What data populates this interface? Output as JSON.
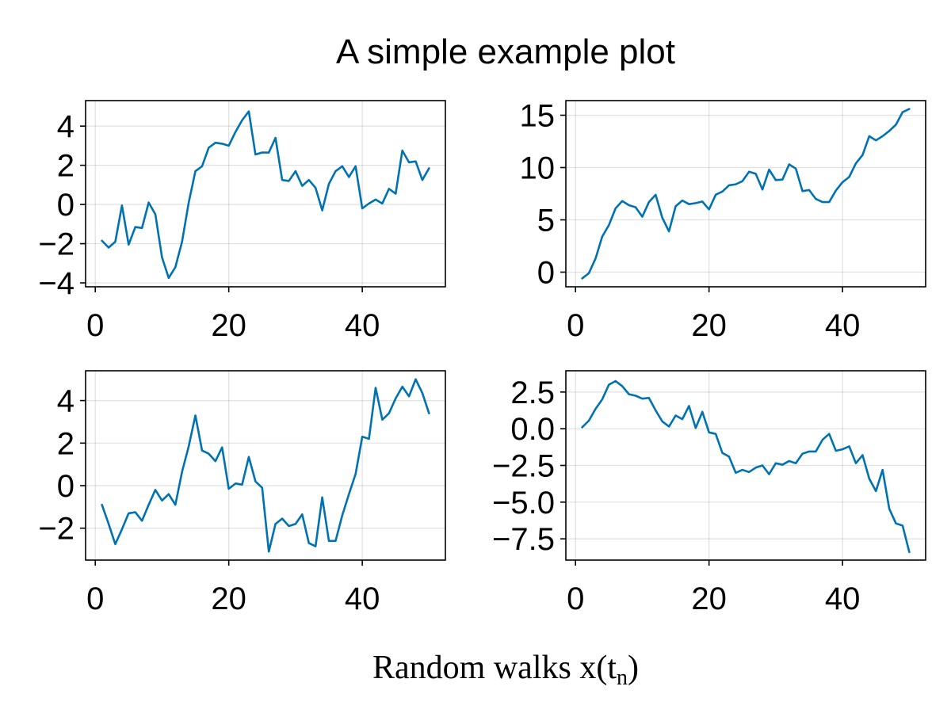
{
  "figure": {
    "title": "A simple example plot",
    "xlabel": "Random walks x(t",
    "xlabel_sub": "n",
    "xlabel_close": ")"
  },
  "chart_data": [
    {
      "type": "line",
      "position": "top-left",
      "xlim": [
        -1.45,
        52.45
      ],
      "ylim": [
        -4.2,
        5.3
      ],
      "xticks": [
        0,
        20,
        40
      ],
      "xtick_labels": [
        "0",
        "20",
        "40"
      ],
      "yticks": [
        -4,
        -2,
        0,
        2,
        4
      ],
      "ytick_labels": [
        "−4",
        "−2",
        "0",
        "2",
        "4"
      ],
      "grid": true,
      "color": "#0072b2",
      "series": [
        {
          "x": [
            1,
            2,
            3,
            4,
            5,
            6,
            7,
            8,
            9,
            10,
            11,
            12,
            13,
            14,
            15,
            16,
            17,
            18,
            19,
            20,
            21,
            22,
            23,
            24,
            25,
            26,
            27,
            28,
            29,
            30,
            31,
            32,
            33,
            34,
            35,
            36,
            37,
            38,
            39,
            40,
            41,
            42,
            43,
            44,
            45,
            46,
            47,
            48,
            49,
            50
          ],
          "values": [
            -1.85,
            -2.2,
            -1.9,
            -0.05,
            -2.05,
            -1.15,
            -1.2,
            0.1,
            -0.5,
            -2.7,
            -3.75,
            -3.2,
            -1.9,
            0.1,
            1.7,
            1.95,
            2.9,
            3.15,
            3.1,
            3.0,
            3.7,
            4.3,
            4.75,
            2.55,
            2.65,
            2.65,
            3.4,
            1.25,
            1.2,
            1.7,
            0.95,
            1.25,
            0.85,
            -0.3,
            1.05,
            1.7,
            1.95,
            1.4,
            1.95,
            -0.2,
            0.05,
            0.25,
            0.05,
            0.8,
            0.55,
            2.75,
            2.15,
            2.2,
            1.25,
            1.85
          ]
        }
      ]
    },
    {
      "type": "line",
      "position": "top-right",
      "xlim": [
        -1.45,
        52.45
      ],
      "ylim": [
        -1.4,
        16.4
      ],
      "xticks": [
        0,
        20,
        40
      ],
      "xtick_labels": [
        "0",
        "20",
        "40"
      ],
      "yticks": [
        0,
        5,
        10,
        15
      ],
      "ytick_labels": [
        "0",
        "5",
        "10",
        "15"
      ],
      "grid": true,
      "color": "#0072b2",
      "series": [
        {
          "x": [
            1,
            2,
            3,
            4,
            5,
            6,
            7,
            8,
            9,
            10,
            11,
            12,
            13,
            14,
            15,
            16,
            17,
            18,
            19,
            20,
            21,
            22,
            23,
            24,
            25,
            26,
            27,
            28,
            29,
            30,
            31,
            32,
            33,
            34,
            35,
            36,
            37,
            38,
            39,
            40,
            41,
            42,
            43,
            44,
            45,
            46,
            47,
            48,
            49,
            50
          ],
          "values": [
            -0.6,
            -0.1,
            1.3,
            3.4,
            4.5,
            6.1,
            6.8,
            6.4,
            6.2,
            5.3,
            6.7,
            7.4,
            5.2,
            3.9,
            6.3,
            6.85,
            6.5,
            6.6,
            6.75,
            6.0,
            7.4,
            7.7,
            8.3,
            8.4,
            8.7,
            9.6,
            9.4,
            7.9,
            9.8,
            8.8,
            8.85,
            10.3,
            9.9,
            7.75,
            7.85,
            7.0,
            6.7,
            6.7,
            7.8,
            8.6,
            9.1,
            10.4,
            11.2,
            13.0,
            12.6,
            13.0,
            13.5,
            14.1,
            15.3,
            15.6
          ]
        }
      ]
    },
    {
      "type": "line",
      "position": "bottom-left",
      "xlim": [
        -1.45,
        52.45
      ],
      "ylim": [
        -3.5,
        5.4
      ],
      "xticks": [
        0,
        20,
        40
      ],
      "xtick_labels": [
        "0",
        "20",
        "40"
      ],
      "yticks": [
        -2,
        0,
        2,
        4
      ],
      "ytick_labels": [
        "−2",
        "0",
        "2",
        "4"
      ],
      "grid": true,
      "color": "#0072b2",
      "series": [
        {
          "x": [
            1,
            2,
            3,
            4,
            5,
            6,
            7,
            8,
            9,
            10,
            11,
            12,
            13,
            14,
            15,
            16,
            17,
            18,
            19,
            20,
            21,
            22,
            23,
            24,
            25,
            26,
            27,
            28,
            29,
            30,
            31,
            32,
            33,
            34,
            35,
            36,
            37,
            38,
            39,
            40,
            41,
            42,
            43,
            44,
            45,
            46,
            47,
            48,
            49,
            50
          ],
          "values": [
            -0.9,
            -1.8,
            -2.75,
            -2.05,
            -1.3,
            -1.25,
            -1.65,
            -0.9,
            -0.2,
            -0.7,
            -0.4,
            -0.9,
            0.65,
            1.85,
            3.3,
            1.65,
            1.5,
            1.15,
            1.8,
            -0.15,
            0.1,
            0.05,
            1.35,
            0.2,
            -0.1,
            -3.1,
            -1.8,
            -1.55,
            -1.9,
            -1.8,
            -1.35,
            -2.7,
            -2.85,
            -0.55,
            -2.6,
            -2.6,
            -1.4,
            -0.4,
            0.55,
            2.3,
            2.2,
            4.6,
            3.1,
            3.4,
            4.1,
            4.65,
            4.2,
            5.0,
            4.35,
            3.4
          ]
        }
      ]
    },
    {
      "type": "line",
      "position": "bottom-right",
      "xlim": [
        -1.45,
        52.45
      ],
      "ylim": [
        -8.95,
        3.95
      ],
      "xticks": [
        0,
        20,
        40
      ],
      "xtick_labels": [
        "0",
        "20",
        "40"
      ],
      "yticks": [
        2.5,
        0.0,
        -2.5,
        -5.0,
        -7.5
      ],
      "ytick_labels": [
        "2.5",
        "0.0",
        "−2.5",
        "−5.0",
        "−7.5"
      ],
      "grid": true,
      "color": "#0072b2",
      "series": [
        {
          "x": [
            1,
            2,
            3,
            4,
            5,
            6,
            7,
            8,
            9,
            10,
            11,
            12,
            13,
            14,
            15,
            16,
            17,
            18,
            19,
            20,
            21,
            22,
            23,
            24,
            25,
            26,
            27,
            28,
            29,
            30,
            31,
            32,
            33,
            34,
            35,
            36,
            37,
            38,
            39,
            40,
            41,
            42,
            43,
            44,
            45,
            46,
            47,
            48,
            49,
            50
          ],
          "values": [
            0.1,
            0.55,
            1.35,
            2.0,
            3.0,
            3.25,
            2.9,
            2.35,
            2.25,
            2.05,
            2.1,
            1.25,
            0.5,
            0.15,
            0.9,
            0.65,
            1.55,
            0.05,
            1.15,
            -0.25,
            -0.35,
            -1.65,
            -1.9,
            -3.0,
            -2.8,
            -2.95,
            -2.65,
            -2.5,
            -3.1,
            -2.35,
            -2.45,
            -2.2,
            -2.35,
            -1.7,
            -1.55,
            -1.55,
            -0.75,
            -0.35,
            -1.5,
            -1.4,
            -1.2,
            -2.35,
            -1.8,
            -3.4,
            -4.25,
            -2.8,
            -5.45,
            -6.45,
            -6.6,
            -8.4
          ]
        }
      ]
    }
  ]
}
